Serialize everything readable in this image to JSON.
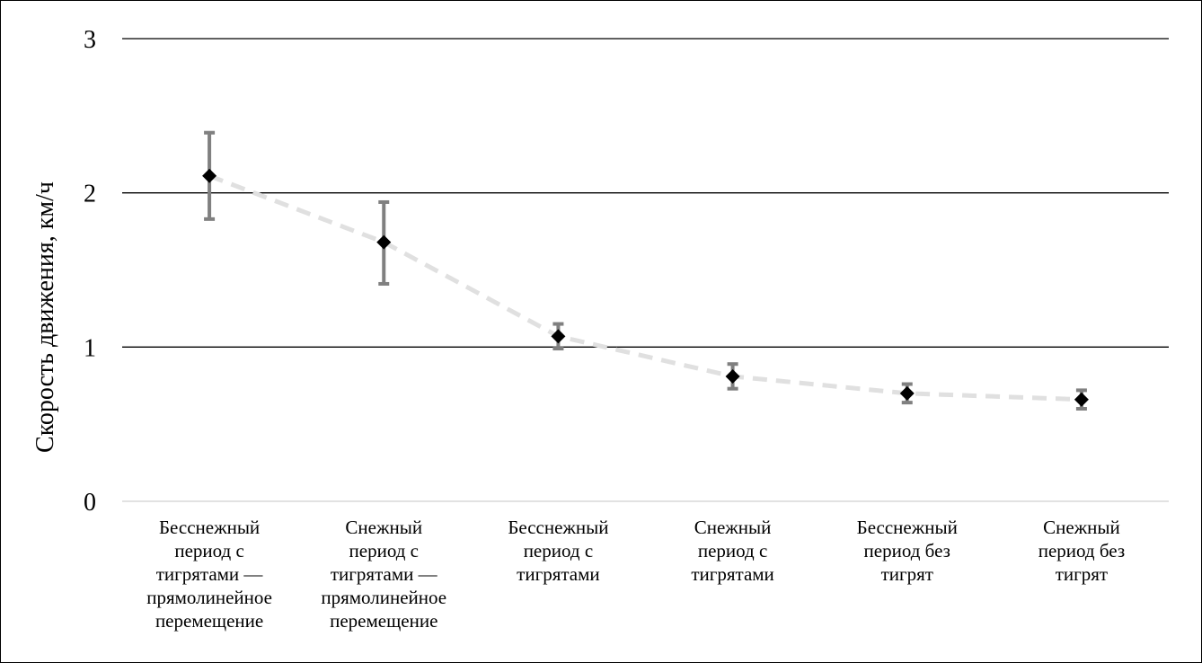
{
  "chart_data": {
    "type": "scatter",
    "title": "",
    "xlabel": "",
    "ylabel": "Скорость движения, км/ч",
    "ylim": [
      0,
      3
    ],
    "yticks": [
      0,
      1,
      2,
      3
    ],
    "grid": true,
    "legend": "none",
    "categories": [
      [
        "Бесснежный",
        "период с",
        "тигрятами —",
        "прямолинейное",
        "перемещение"
      ],
      [
        "Снежный",
        "период с",
        "тигрятами —",
        "прямолинейное",
        "перемещение"
      ],
      [
        "Бесснежный",
        "период с",
        "тигрятами"
      ],
      [
        "Снежный",
        "период с",
        "тигрятами"
      ],
      [
        "Бесснежный",
        "период без",
        "тигрят"
      ],
      [
        "Снежный",
        "период без",
        "тигрят"
      ]
    ],
    "series": [
      {
        "values": [
          2.11,
          1.68,
          1.07,
          0.81,
          0.7,
          0.66
        ],
        "error_low": [
          1.83,
          1.41,
          0.99,
          0.73,
          0.64,
          0.6
        ],
        "error_high": [
          2.39,
          1.94,
          1.15,
          0.89,
          0.76,
          0.72
        ],
        "marker": "diamond",
        "color": "#000000",
        "trend_line": "dashed",
        "trend_color": "#e0e0e0",
        "error_color": "#808080"
      }
    ]
  }
}
